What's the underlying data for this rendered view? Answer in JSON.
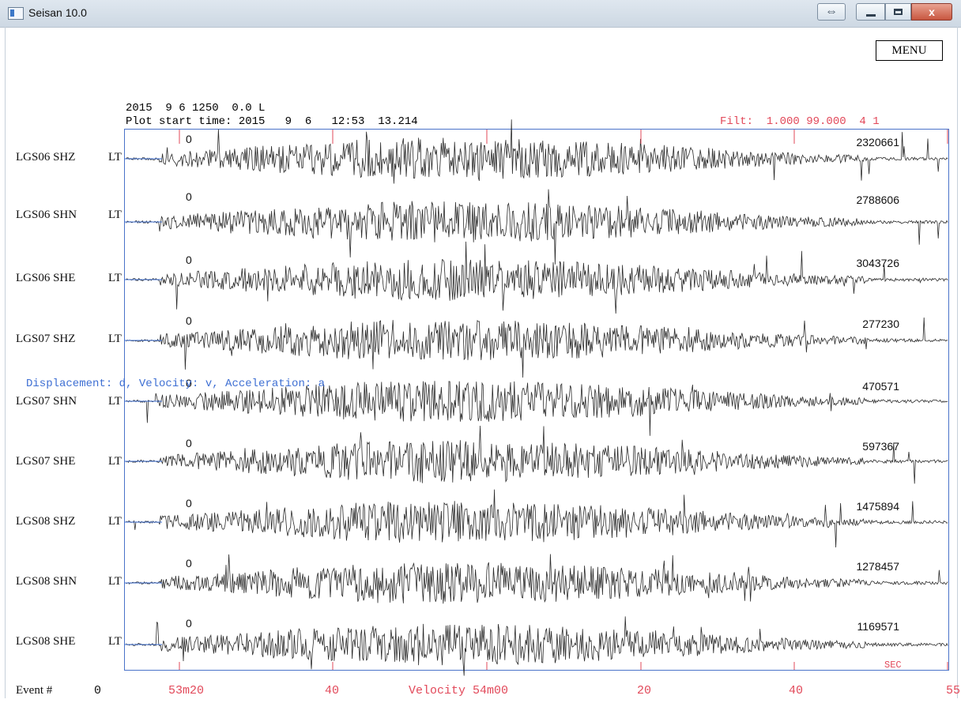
{
  "window": {
    "title": "Seisan 10.0",
    "restore_icon": "arrows-icon",
    "minimize_icon": "minimize-icon",
    "maximize_icon": "maximize-icon",
    "close_label": "x"
  },
  "menu": {
    "label": "MENU"
  },
  "header": {
    "event_line": "2015  9 6 1250  0.0 L",
    "plot_start_line": "Plot start time: 2015   9  6   12:53  13.214",
    "filter_line": "Filt:  1.000 99.000  4 1"
  },
  "displacement_note": "Displacement: d, Velocity: v, Acceleration: a",
  "traces": [
    {
      "station": "LGS06 SHZ",
      "component_code": "LT",
      "zero": "0",
      "max_amplitude": "2320661"
    },
    {
      "station": "LGS06 SHN",
      "component_code": "LT",
      "zero": "0",
      "max_amplitude": "2788606"
    },
    {
      "station": "LGS06 SHE",
      "component_code": "LT",
      "zero": "0",
      "max_amplitude": "3043726"
    },
    {
      "station": "LGS07 SHZ",
      "component_code": "LT",
      "zero": "0",
      "max_amplitude": "277230"
    },
    {
      "station": "LGS07 SHN",
      "component_code": "LT",
      "zero": "0",
      "max_amplitude": "470571"
    },
    {
      "station": "LGS07 SHE",
      "component_code": "LT",
      "zero": "0",
      "max_amplitude": "597367"
    },
    {
      "station": "LGS08 SHZ",
      "component_code": "LT",
      "zero": "0",
      "max_amplitude": "1475894"
    },
    {
      "station": "LGS08 SHN",
      "component_code": "LT",
      "zero": "0",
      "max_amplitude": "1278457"
    },
    {
      "station": "LGS08 SHE",
      "component_code": "LT",
      "zero": "0",
      "max_amplitude": "1169571"
    }
  ],
  "axis": {
    "unit": "SEC",
    "time_labels": [
      "53m20",
      "40",
      "Velocity 54m00",
      "20",
      "40",
      "55"
    ]
  },
  "footer": {
    "event_label": "Event #",
    "event_number": "0"
  }
}
